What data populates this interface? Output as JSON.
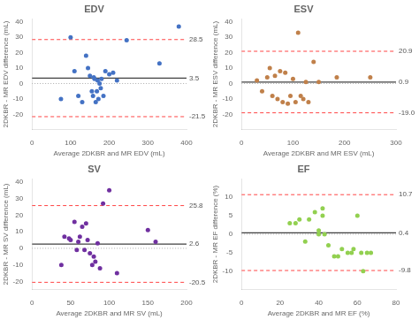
{
  "chart_data": [
    {
      "type": "scatter",
      "title": "EDV",
      "xlabel": "Average 2DKBR and MR EDV (mL)",
      "ylabel": "2DKBR - MR EDV difference (mL)",
      "color": "#4472C4",
      "x": [
        75,
        100,
        110,
        120,
        130,
        140,
        145,
        150,
        155,
        158,
        160,
        162,
        165,
        168,
        170,
        172,
        175,
        178,
        180,
        185,
        190,
        200,
        210,
        220,
        245,
        330,
        380
      ],
      "values": [
        -10,
        30,
        8,
        -8,
        -12,
        18,
        10,
        5,
        -5,
        -8,
        4,
        3,
        -12,
        -5,
        2,
        -10,
        0,
        -3,
        3,
        -8,
        8,
        6,
        7,
        2,
        28,
        13,
        37
      ],
      "xlim": [
        0,
        400
      ],
      "xticks": [
        0,
        100,
        200,
        300,
        400
      ],
      "ylim": [
        -30,
        42
      ],
      "yticks": [
        -20,
        -10,
        0,
        10,
        20,
        30,
        40
      ],
      "grid": false,
      "annotations": [
        {
          "y": 0,
          "color": "#aaaaaa",
          "line_style": "dotted"
        },
        {
          "y": 3.5,
          "label": "3.5",
          "color": "#404040",
          "line_style": "solid"
        },
        {
          "y": 28.5,
          "label": "28.5",
          "color": "#FF4444",
          "line_style": "dashed"
        },
        {
          "y": -21.5,
          "label": "-21.5",
          "color": "#FF4444",
          "line_style": "dashed"
        }
      ]
    },
    {
      "type": "scatter",
      "title": "ESV",
      "xlabel": "Average 2DKBR and MR ESV (mL)",
      "ylabel": "2DKBR - MR ESV difference (mL)",
      "color": "#C0804A",
      "x": [
        30,
        40,
        50,
        55,
        60,
        65,
        70,
        75,
        80,
        85,
        90,
        95,
        100,
        105,
        110,
        115,
        120,
        125,
        130,
        140,
        150,
        185,
        250
      ],
      "values": [
        2,
        -5,
        4,
        10,
        -8,
        5,
        -10,
        8,
        -12,
        7,
        -13,
        -8,
        3,
        -12,
        33,
        -8,
        -10,
        1,
        -12,
        14,
        1,
        4,
        4
      ],
      "xlim": [
        0,
        300
      ],
      "xticks": [
        0,
        100,
        200,
        300
      ],
      "ylim": [
        -30,
        42
      ],
      "yticks": [
        -20,
        -10,
        0,
        10,
        20,
        30,
        40
      ],
      "grid": false,
      "annotations": [
        {
          "y": 0,
          "color": "#aaaaaa",
          "line_style": "dotted"
        },
        {
          "y": 0.9,
          "label": "0.9",
          "color": "#404040",
          "line_style": "solid"
        },
        {
          "y": 20.9,
          "label": "20.9",
          "color": "#FF4444",
          "line_style": "dashed"
        },
        {
          "y": -19.0,
          "label": "-19.0",
          "color": "#FF4444",
          "line_style": "dashed"
        }
      ]
    },
    {
      "type": "scatter",
      "title": "SV",
      "xlabel": "Average 2DKBR and MR SV (mL)",
      "ylabel": "2DKBR - MR SV difference (mL)",
      "color": "#7030A0",
      "x": [
        38,
        42,
        48,
        50,
        55,
        58,
        60,
        62,
        65,
        68,
        70,
        72,
        75,
        78,
        80,
        82,
        85,
        88,
        92,
        100,
        110,
        150,
        160
      ],
      "values": [
        -10,
        7,
        6,
        5,
        16,
        -1,
        4,
        7,
        13,
        -1,
        15,
        5,
        -3,
        -10,
        -5,
        -8,
        3,
        -12,
        27,
        35,
        -15,
        11,
        4
      ],
      "xlim": [
        0,
        200
      ],
      "xticks": [
        0,
        50,
        100,
        150,
        200
      ],
      "ylim": [
        -25,
        42
      ],
      "yticks": [
        -20,
        -10,
        0,
        10,
        20,
        30,
        40
      ],
      "grid": false,
      "annotations": [
        {
          "y": 0,
          "color": "#aaaaaa",
          "line_style": "dotted"
        },
        {
          "y": 2.6,
          "label": "2.6",
          "color": "#404040",
          "line_style": "solid"
        },
        {
          "y": 25.8,
          "label": "25.8",
          "color": "#FF4444",
          "line_style": "dashed"
        },
        {
          "y": -20.5,
          "label": "-20.5",
          "color": "#FF4444",
          "line_style": "dashed"
        }
      ]
    },
    {
      "type": "scatter",
      "title": "EF",
      "xlabel": "Average 2DKBR and MR EF (%)",
      "ylabel": "2DKBR - MR EF difference (%)",
      "color": "#92D050",
      "x": [
        25,
        28,
        30,
        33,
        35,
        38,
        40,
        40,
        42,
        42,
        43,
        45,
        48,
        50,
        52,
        55,
        57,
        58,
        60,
        62,
        63,
        65,
        67
      ],
      "values": [
        3,
        3,
        4,
        -2,
        4,
        6,
        1,
        0,
        5,
        7,
        0,
        -3,
        -6,
        -6,
        -4,
        -5,
        -5,
        -4,
        5,
        -5,
        -10,
        -5,
        -5
      ],
      "xlim": [
        0,
        80
      ],
      "xticks": [
        0,
        20,
        40,
        60,
        80
      ],
      "ylim": [
        -15,
        15
      ],
      "yticks": [
        -10,
        -5,
        0,
        5,
        10
      ],
      "grid": false,
      "annotations": [
        {
          "y": 0,
          "color": "#aaaaaa",
          "line_style": "dotted"
        },
        {
          "y": 0.4,
          "label": "0.4",
          "color": "#404040",
          "line_style": "solid"
        },
        {
          "y": 10.7,
          "label": "10.7",
          "color": "#FF4444",
          "line_style": "dashed"
        },
        {
          "y": -9.8,
          "label": "-9.8",
          "color": "#FF4444",
          "line_style": "dashed"
        }
      ]
    }
  ]
}
